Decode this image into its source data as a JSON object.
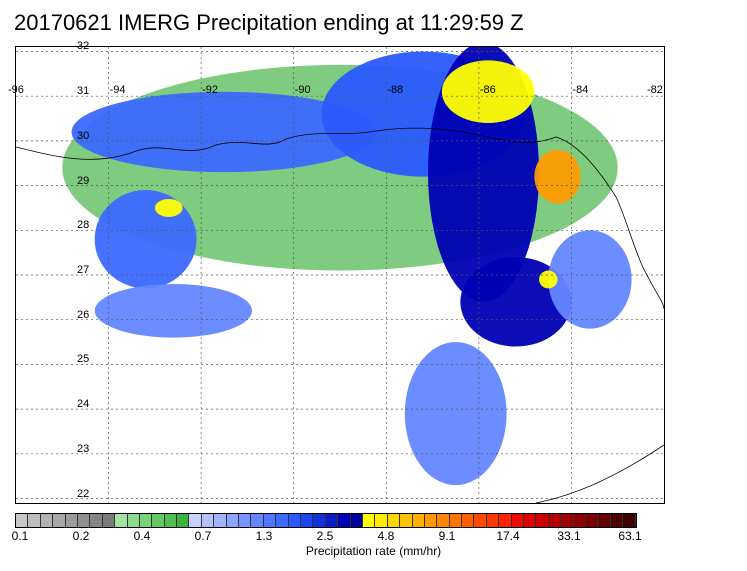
{
  "title": "20170621 IMERG Precipitation ending at 11:29:59 Z",
  "map": {
    "lat_labels": [
      "32",
      "31",
      "30",
      "29",
      "28",
      "27",
      "26",
      "25",
      "24",
      "23",
      "22"
    ],
    "lon_labels": [
      "-96",
      "-94",
      "-92",
      "-90",
      "-88",
      "-86",
      "-84",
      "-82"
    ],
    "lat_range": [
      21.9,
      32.1
    ],
    "lon_range": [
      -96.0,
      -82.0
    ],
    "gridlines": true
  },
  "colorbar": {
    "title": "Precipitation rate (mm/hr)",
    "tick_labels": [
      "0.1",
      "0.2",
      "0.4",
      "0.7",
      "1.3",
      "2.5",
      "4.8",
      "9.1",
      "17.4",
      "33.1",
      "63.1"
    ],
    "colors": [
      "#c8c8c8",
      "#bdbdbd",
      "#b2b2b2",
      "#a7a7a7",
      "#9c9c9c",
      "#919191",
      "#868686",
      "#7b7b7b",
      "#a0e6a0",
      "#8cdc8c",
      "#78d278",
      "#64c864",
      "#50be50",
      "#3cb43c",
      "#c8d2ff",
      "#b4c3ff",
      "#a0b4ff",
      "#8ca5ff",
      "#7896ff",
      "#6487ff",
      "#5078ff",
      "#3c69ff",
      "#2a5aff",
      "#1e46f0",
      "#1432dc",
      "#0a1ec8",
      "#0000b4",
      "#0000a0",
      "#ffff00",
      "#ffeb00",
      "#ffd700",
      "#ffc300",
      "#ffaf00",
      "#ff9b00",
      "#ff8700",
      "#ff7300",
      "#ff5f00",
      "#ff4b00",
      "#ff3700",
      "#ff2300",
      "#f00a00",
      "#dc0000",
      "#c80000",
      "#b40000",
      "#a00000",
      "#8c0000",
      "#780000",
      "#640000",
      "#500000",
      "#3c0000"
    ]
  },
  "regions": [
    {
      "color": "#78c878",
      "lon": -89.0,
      "lat": 29.4,
      "rx": 6.0,
      "ry": 2.3
    },
    {
      "color": "#3c69ff",
      "lon": -91.5,
      "lat": 30.2,
      "rx": 3.3,
      "ry": 0.9
    },
    {
      "color": "#2a5aff",
      "lon": -87.2,
      "lat": 30.6,
      "rx": 2.2,
      "ry": 1.4
    },
    {
      "color": "#0000b4",
      "lon": -85.9,
      "lat": 29.3,
      "rx": 1.2,
      "ry": 2.9
    },
    {
      "color": "#0000b4",
      "lon": -85.2,
      "lat": 26.4,
      "rx": 1.2,
      "ry": 1.0
    },
    {
      "color": "#3c69ff",
      "lon": -93.2,
      "lat": 27.8,
      "rx": 1.1,
      "ry": 1.1
    },
    {
      "color": "#6487ff",
      "lon": -92.6,
      "lat": 26.2,
      "rx": 1.7,
      "ry": 0.6
    },
    {
      "color": "#6487ff",
      "lon": -86.5,
      "lat": 23.9,
      "rx": 1.1,
      "ry": 1.6
    },
    {
      "color": "#6487ff",
      "lon": -83.6,
      "lat": 26.9,
      "rx": 0.9,
      "ry": 1.1
    },
    {
      "color": "#ffff00",
      "lon": -85.8,
      "lat": 31.1,
      "rx": 1.0,
      "ry": 0.7
    },
    {
      "color": "#ff9b00",
      "lon": -84.3,
      "lat": 29.2,
      "rx": 0.5,
      "ry": 0.6
    },
    {
      "color": "#ffff00",
      "lon": -92.7,
      "lat": 28.5,
      "rx": 0.3,
      "ry": 0.2
    },
    {
      "color": "#ffff00",
      "lon": -84.5,
      "lat": 26.9,
      "rx": 0.2,
      "ry": 0.2
    }
  ]
}
